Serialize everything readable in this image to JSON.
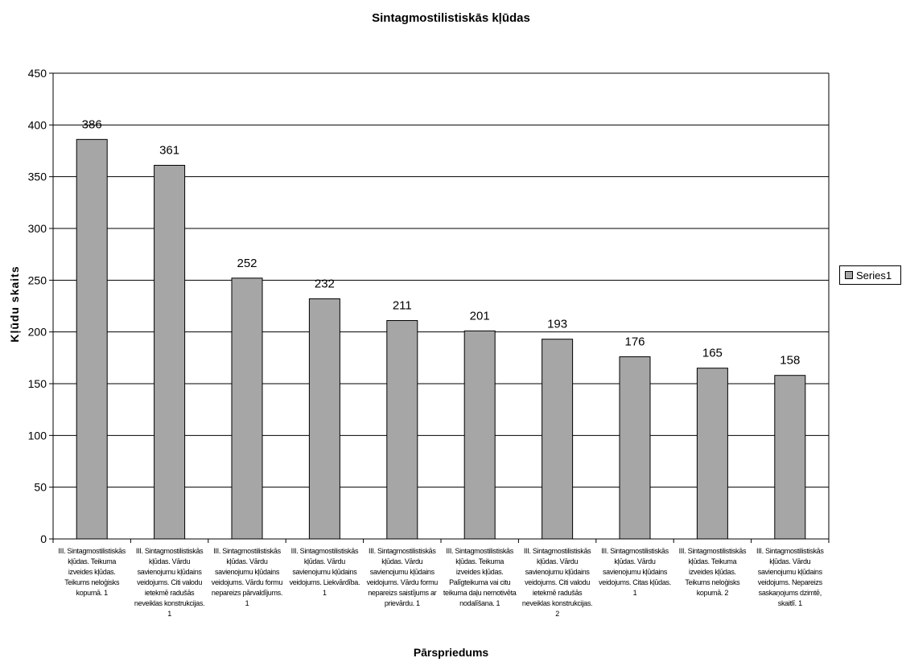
{
  "chart_data": {
    "type": "bar",
    "title": "Sintagmostilistiskās kļūdas",
    "xlabel": "Pārspriedums",
    "ylabel": "Kļūdu skaits",
    "ylim": [
      0,
      450
    ],
    "yticks": [
      0,
      50,
      100,
      150,
      200,
      250,
      300,
      350,
      400,
      450
    ],
    "grid": true,
    "legend_position": "right",
    "bar_color": "#a6a6a6",
    "categories": [
      "III. Sintagmostilistiskās kļūdas. Teikuma izveides kļūdas. Teikums neloģisks kopumā. 1",
      "III. Sintagmostilistiskās kļūdas. Vārdu savienojumu kļūdains veidojums. Citi valodu ietekmē radušās neveiklas konstrukcijas. 1",
      "III. Sintagmostilistiskās kļūdas. Vārdu savienojumu kļūdains veidojums. Vārdu formu nepareizs pārvaldījums. 1",
      "III. Sintagmostilistiskās kļūdas. Vārdu savienojumu kļūdains veidojums. Liekvārdība. 1",
      "III. Sintagmostilistiskās kļūdas. Vārdu savienojumu kļūdains veidojums. Vārdu formu nepareizs saistījums ar prievārdu. 1",
      "III. Sintagmostilistiskās kļūdas. Teikuma izveides kļūdas. Palīgteikuma vai citu teikuma daļu nemotivēta nodalīšana. 1",
      "III. Sintagmostilistiskās kļūdas. Vārdu savienojumu kļūdains veidojums. Citi valodu ietekmē radušās neveiklas konstrukcijas. 2",
      "III. Sintagmostilistiskās kļūdas. Vārdu savienojumu kļūdains veidojums. Citas kļūdas. 1",
      "III. Sintagmostilistiskās kļūdas. Teikuma izveides kļūdas. Teikums neloģisks kopumā. 2",
      "III. Sintagmostilistiskās kļūdas. Vārdu savienojumu kļūdains veidojums. Nepareizs saskaņojums dzimtē, skaitlī. 1"
    ],
    "category_lines": [
      [
        "III. Sintagmostilistiskās",
        "kļūdas. Teikuma",
        "izveides kļūdas.",
        "Teikums neloģisks",
        "kopumā. 1"
      ],
      [
        "III. Sintagmostilistiskās",
        "kļūdas. Vārdu",
        "savienojumu kļūdains",
        "veidojums. Citi valodu",
        "ietekmē radušās",
        "neveiklas konstrukcijas.",
        "1"
      ],
      [
        "III. Sintagmostilistiskās",
        "kļūdas. Vārdu",
        "savienojumu kļūdains",
        "veidojums. Vārdu formu",
        "nepareizs pārvaldījums.",
        "1"
      ],
      [
        "III. Sintagmostilistiskās",
        "kļūdas. Vārdu",
        "savienojumu kļūdains",
        "veidojums. Liekvārdība.",
        "1"
      ],
      [
        "III. Sintagmostilistiskās",
        "kļūdas. Vārdu",
        "savienojumu kļūdains",
        "veidojums. Vārdu formu",
        "nepareizs saistījums ar",
        "prievārdu. 1"
      ],
      [
        "III. Sintagmostilistiskās",
        "kļūdas. Teikuma",
        "izveides kļūdas.",
        "Palīgteikuma vai citu",
        "teikuma daļu nemotivēta",
        "nodalīšana. 1"
      ],
      [
        "III. Sintagmostilistiskās",
        "kļūdas. Vārdu",
        "savienojumu kļūdains",
        "veidojums. Citi valodu",
        "ietekmē radušās",
        "neveiklas konstrukcijas.",
        "2"
      ],
      [
        "III. Sintagmostilistiskās",
        "kļūdas. Vārdu",
        "savienojumu kļūdains",
        "veidojums. Citas kļūdas.",
        "1"
      ],
      [
        "III. Sintagmostilistiskās",
        "kļūdas. Teikuma",
        "izveides kļūdas.",
        "Teikums neloģisks",
        "kopumā. 2"
      ],
      [
        "III. Sintagmostilistiskās",
        "kļūdas. Vārdu",
        "savienojumu kļūdains",
        "veidojums. Nepareizs",
        "saskaņojums dzimtē,",
        "skaitlī. 1"
      ]
    ],
    "series": [
      {
        "name": "Series1",
        "values": [
          386,
          361,
          252,
          232,
          211,
          201,
          193,
          176,
          165,
          158
        ]
      }
    ]
  }
}
